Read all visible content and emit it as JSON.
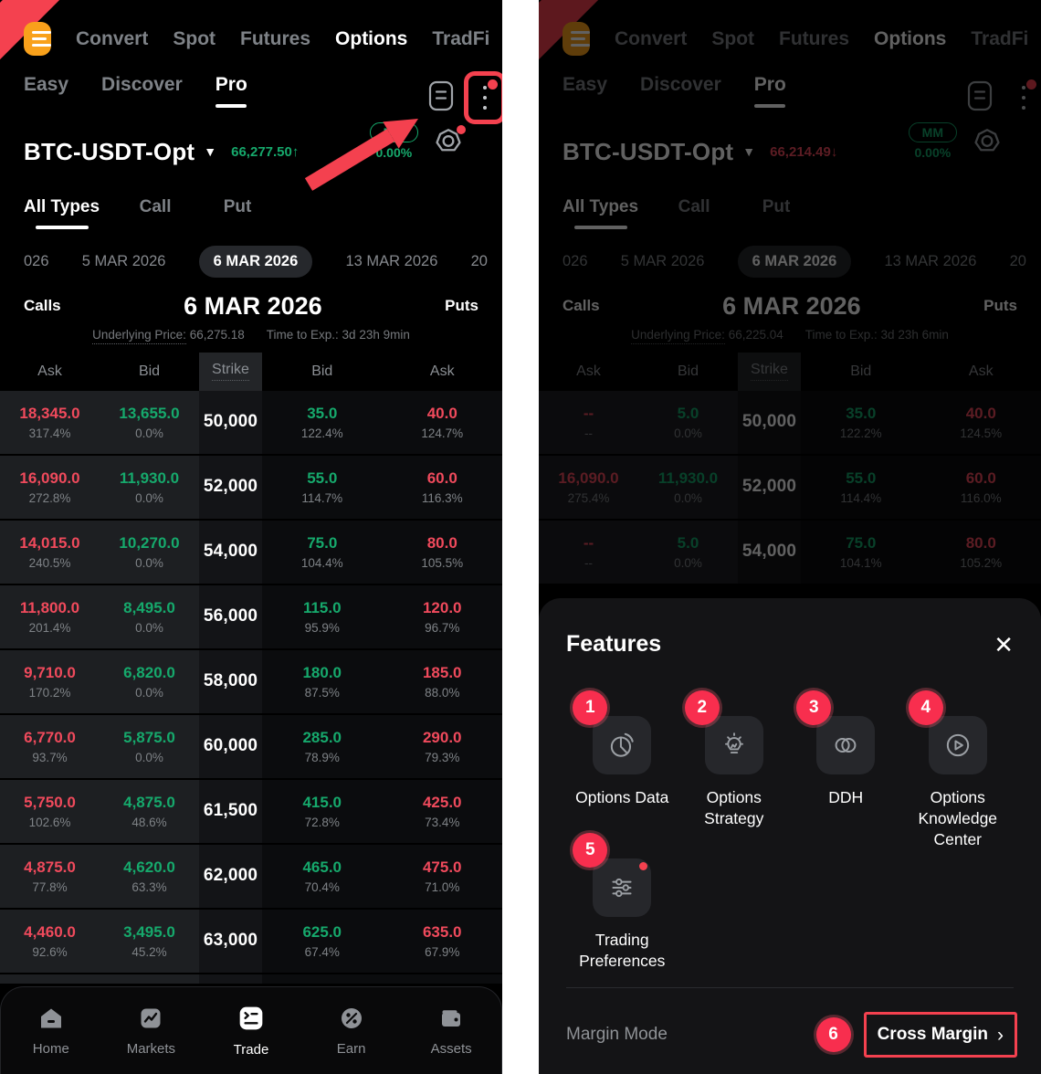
{
  "colors": {
    "callout_red": "#f4414f",
    "badge_red": "#f82e4e",
    "green": "#16a96c",
    "red": "#f04a5c",
    "orange": "#f9a11b"
  },
  "left": {
    "top_nav": {
      "menu_icon": "menu-icon",
      "items": [
        "Convert",
        "Spot",
        "Futures",
        "Options",
        "TradFi"
      ],
      "active": "Options"
    },
    "view_tabs": {
      "items": [
        "Easy",
        "Discover",
        "Pro"
      ],
      "active": "Pro"
    },
    "header_icons": {
      "orderbook": "orderbook-icon",
      "more": "kebab-menu-icon",
      "has_notification_dot": true
    },
    "instrument": {
      "name": "BTC-USDT-Opt",
      "price": "66,277.50",
      "direction": "up",
      "arrow": "↑",
      "mm_label": "MM",
      "mm_value": "0.00%",
      "settings_icon": "gear-icon",
      "settings_dot": true
    },
    "type_tabs": {
      "items": [
        "All Types",
        "Call",
        "Put"
      ],
      "active": "All Types"
    },
    "dates": {
      "items": [
        "026",
        "5 MAR 2026",
        "6 MAR 2026",
        "13 MAR 2026",
        "20"
      ],
      "selected": "6 MAR 2026"
    },
    "chain_header": {
      "calls": "Calls",
      "date": "6 MAR 2026",
      "puts": "Puts"
    },
    "meta": {
      "underlying_label": "Underlying Price:",
      "underlying_value": "66,275.18",
      "expiry_label": "Time to Exp.:",
      "expiry_value": "3d 23h 9min"
    },
    "table": {
      "columns": [
        "Ask",
        "Bid",
        "Strike",
        "Bid",
        "Ask"
      ],
      "partial_row": true,
      "rows": [
        {
          "call_ask": "18,345.0",
          "call_ask_iv": "317.4%",
          "call_bid": "13,655.0",
          "call_bid_iv": "0.0%",
          "strike": "50,000",
          "put_bid": "35.0",
          "put_bid_iv": "122.4%",
          "put_ask": "40.0",
          "put_ask_iv": "124.7%"
        },
        {
          "call_ask": "16,090.0",
          "call_ask_iv": "272.8%",
          "call_bid": "11,930.0",
          "call_bid_iv": "0.0%",
          "strike": "52,000",
          "put_bid": "55.0",
          "put_bid_iv": "114.7%",
          "put_ask": "60.0",
          "put_ask_iv": "116.3%"
        },
        {
          "call_ask": "14,015.0",
          "call_ask_iv": "240.5%",
          "call_bid": "10,270.0",
          "call_bid_iv": "0.0%",
          "strike": "54,000",
          "put_bid": "75.0",
          "put_bid_iv": "104.4%",
          "put_ask": "80.0",
          "put_ask_iv": "105.5%"
        },
        {
          "call_ask": "11,800.0",
          "call_ask_iv": "201.4%",
          "call_bid": "8,495.0",
          "call_bid_iv": "0.0%",
          "strike": "56,000",
          "put_bid": "115.0",
          "put_bid_iv": "95.9%",
          "put_ask": "120.0",
          "put_ask_iv": "96.7%"
        },
        {
          "call_ask": "9,710.0",
          "call_ask_iv": "170.2%",
          "call_bid": "6,820.0",
          "call_bid_iv": "0.0%",
          "strike": "58,000",
          "put_bid": "180.0",
          "put_bid_iv": "87.5%",
          "put_ask": "185.0",
          "put_ask_iv": "88.0%"
        },
        {
          "call_ask": "6,770.0",
          "call_ask_iv": "93.7%",
          "call_bid": "5,875.0",
          "call_bid_iv": "0.0%",
          "strike": "60,000",
          "put_bid": "285.0",
          "put_bid_iv": "78.9%",
          "put_ask": "290.0",
          "put_ask_iv": "79.3%"
        },
        {
          "call_ask": "5,750.0",
          "call_ask_iv": "102.6%",
          "call_bid": "4,875.0",
          "call_bid_iv": "48.6%",
          "strike": "61,500",
          "put_bid": "415.0",
          "put_bid_iv": "72.8%",
          "put_ask": "425.0",
          "put_ask_iv": "73.4%"
        },
        {
          "call_ask": "4,875.0",
          "call_ask_iv": "77.8%",
          "call_bid": "4,620.0",
          "call_bid_iv": "63.3%",
          "strike": "62,000",
          "put_bid": "465.0",
          "put_bid_iv": "70.4%",
          "put_ask": "475.0",
          "put_ask_iv": "71.0%"
        },
        {
          "call_ask": "4,460.0",
          "call_ask_iv": "92.6%",
          "call_bid": "3,495.0",
          "call_bid_iv": "45.2%",
          "strike": "63,000",
          "put_bid": "625.0",
          "put_bid_iv": "67.4%",
          "put_ask": "635.0",
          "put_ask_iv": "67.9%"
        }
      ]
    },
    "bottom_nav": {
      "items": [
        {
          "label": "Home",
          "icon": "home-icon"
        },
        {
          "label": "Markets",
          "icon": "markets-icon"
        },
        {
          "label": "Trade",
          "icon": "trade-icon"
        },
        {
          "label": "Earn",
          "icon": "earn-icon"
        },
        {
          "label": "Assets",
          "icon": "assets-icon"
        }
      ],
      "active": "Trade"
    }
  },
  "right": {
    "top_nav": {
      "menu_icon": "menu-icon",
      "items": [
        "Convert",
        "Spot",
        "Futures",
        "Options",
        "TradFi"
      ],
      "active": "Options"
    },
    "view_tabs": {
      "items": [
        "Easy",
        "Discover",
        "Pro"
      ],
      "active": "Pro"
    },
    "header_icons": {
      "orderbook": "orderbook-icon",
      "more": "kebab-menu-icon",
      "has_notification_dot": true
    },
    "instrument": {
      "name": "BTC-USDT-Opt",
      "price": "66,214.49",
      "direction": "down",
      "arrow": "↓",
      "mm_label": "MM",
      "mm_value": "0.00%",
      "settings_icon": "gear-icon",
      "settings_dot": false
    },
    "type_tabs": {
      "items": [
        "All Types",
        "Call",
        "Put"
      ],
      "active": "All Types"
    },
    "dates": {
      "items": [
        "026",
        "5 MAR 2026",
        "6 MAR 2026",
        "13 MAR 2026",
        "20"
      ],
      "selected": "6 MAR 2026"
    },
    "chain_header": {
      "calls": "Calls",
      "date": "6 MAR 2026",
      "puts": "Puts"
    },
    "meta": {
      "underlying_label": "Underlying Price:",
      "underlying_value": "66,225.04",
      "expiry_label": "Time to Exp.:",
      "expiry_value": "3d 23h 6min"
    },
    "table": {
      "columns": [
        "Ask",
        "Bid",
        "Strike",
        "Bid",
        "Ask"
      ],
      "partial_row": false,
      "rows": [
        {
          "call_ask": "--",
          "call_ask_iv": "--",
          "call_bid": "5.0",
          "call_bid_iv": "0.0%",
          "strike": "50,000",
          "put_bid": "35.0",
          "put_bid_iv": "122.2%",
          "put_ask": "40.0",
          "put_ask_iv": "124.5%"
        },
        {
          "call_ask": "16,090.0",
          "call_ask_iv": "275.4%",
          "call_bid": "11,930.0",
          "call_bid_iv": "0.0%",
          "strike": "52,000",
          "put_bid": "55.0",
          "put_bid_iv": "114.4%",
          "put_ask": "60.0",
          "put_ask_iv": "116.0%"
        },
        {
          "call_ask": "--",
          "call_ask_iv": "--",
          "call_bid": "5.0",
          "call_bid_iv": "0.0%",
          "strike": "54,000",
          "put_bid": "75.0",
          "put_bid_iv": "104.1%",
          "put_ask": "80.0",
          "put_ask_iv": "105.2%"
        }
      ]
    },
    "bottom_nav": {
      "items": [
        {
          "label": "Home",
          "icon": "home-icon"
        },
        {
          "label": "Markets",
          "icon": "markets-icon"
        },
        {
          "label": "Trade",
          "icon": "trade-icon"
        },
        {
          "label": "Earn",
          "icon": "earn-icon"
        },
        {
          "label": "Assets",
          "icon": "assets-icon"
        }
      ],
      "active": "Trade"
    }
  },
  "modal": {
    "title": "Features",
    "close_icon": "close-icon",
    "close_glyph": "✕",
    "items": [
      {
        "badge": "1",
        "label": "Options Data",
        "icon": "pie-chart-icon",
        "notification_dot": false
      },
      {
        "badge": "2",
        "label": "Options Strategy",
        "icon": "lightbulb-icon",
        "notification_dot": false
      },
      {
        "badge": "3",
        "label": "DDH",
        "icon": "linked-circles-icon",
        "notification_dot": false
      },
      {
        "badge": "4",
        "label": "Options Knowledge Center",
        "icon": "play-circle-icon",
        "notification_dot": false
      },
      {
        "badge": "5",
        "label": "Trading Preferences",
        "icon": "sliders-icon",
        "notification_dot": true
      }
    ],
    "margin_mode": {
      "badge": "6",
      "label": "Margin Mode",
      "value": "Cross Margin",
      "chevron": "›"
    }
  }
}
